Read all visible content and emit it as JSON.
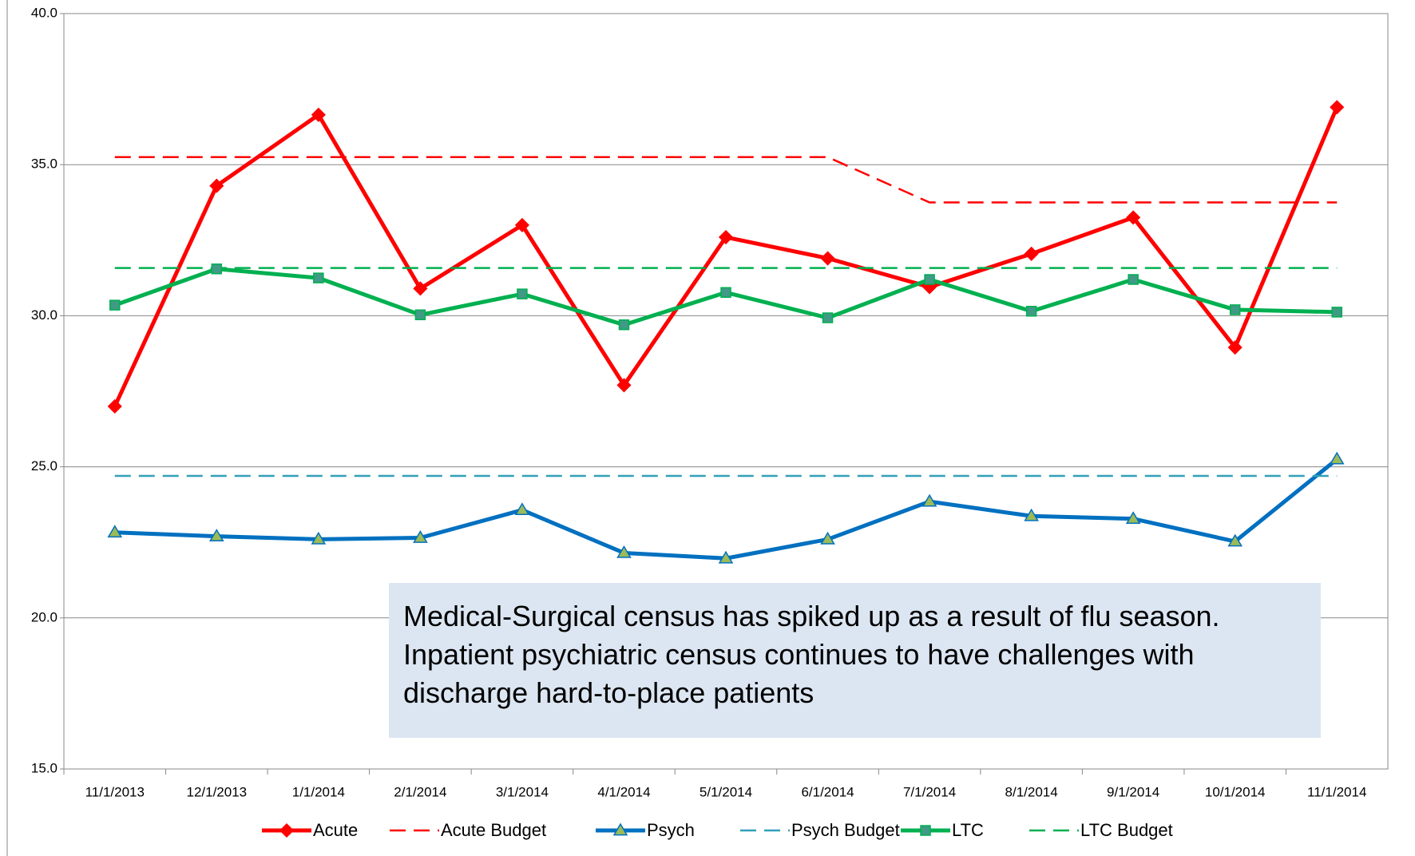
{
  "chart_data": {
    "type": "line",
    "x": [
      "11/1/2013",
      "12/1/2013",
      "1/1/2014",
      "2/1/2014",
      "3/1/2014",
      "4/1/2014",
      "5/1/2014",
      "6/1/2014",
      "7/1/2014",
      "8/1/2014",
      "9/1/2014",
      "10/1/2014",
      "11/1/2014"
    ],
    "series": [
      {
        "name": "Acute",
        "color": "#ff0000",
        "marker": "diamond",
        "marker_color": "#ff0000",
        "dashed": false,
        "values": [
          27.0,
          34.3,
          36.65,
          30.9,
          33.0,
          27.7,
          32.6,
          31.9,
          30.95,
          32.05,
          33.25,
          28.95,
          36.9
        ]
      },
      {
        "name": "Acute Budget",
        "color": "#ff0000",
        "dashed": true,
        "values": [
          35.25,
          35.25,
          35.25,
          35.25,
          35.25,
          35.25,
          35.25,
          35.25,
          33.75,
          33.75,
          33.75,
          33.75,
          33.75
        ]
      },
      {
        "name": "Psych",
        "color": "#0070c0",
        "marker": "triangle",
        "marker_color": "#9bbb59",
        "dashed": false,
        "values": [
          22.83,
          22.7,
          22.6,
          22.65,
          23.57,
          22.15,
          21.97,
          22.6,
          23.85,
          23.37,
          23.28,
          22.53,
          25.25
        ]
      },
      {
        "name": "Psych Budget",
        "color": "#31a0b8",
        "dashed": true,
        "values": [
          24.7,
          24.7,
          24.7,
          24.7,
          24.7,
          24.7,
          24.7,
          24.7,
          24.7,
          24.7,
          24.7,
          24.7,
          24.7
        ]
      },
      {
        "name": "LTC",
        "color": "#00b050",
        "marker": "square",
        "marker_color": "#3f9a86",
        "dashed": false,
        "values": [
          30.35,
          31.55,
          31.25,
          30.03,
          30.72,
          29.7,
          30.77,
          29.93,
          31.2,
          30.15,
          31.2,
          30.2,
          30.12
        ]
      },
      {
        "name": "LTC Budget",
        "color": "#00b050",
        "dashed": true,
        "values": [
          31.58,
          31.58,
          31.58,
          31.58,
          31.58,
          31.58,
          31.58,
          31.58,
          31.58,
          31.58,
          31.58,
          31.58,
          31.58
        ]
      }
    ],
    "ylim": [
      15,
      40
    ],
    "yticks": [
      {
        "value": 15,
        "label": "15.0"
      },
      {
        "value": 20,
        "label": "20.0"
      },
      {
        "value": 25,
        "label": "25.0"
      },
      {
        "value": 30,
        "label": "30.0"
      },
      {
        "value": 35,
        "label": "35.0"
      },
      {
        "value": 40,
        "label": "40.0"
      }
    ],
    "grid": true,
    "legend": "bottom",
    "annotation": "Medical-Surgical census has spiked up as a result of flu season.  Inpatient psychiatric census continues to have challenges with discharge hard-to-place patients"
  }
}
